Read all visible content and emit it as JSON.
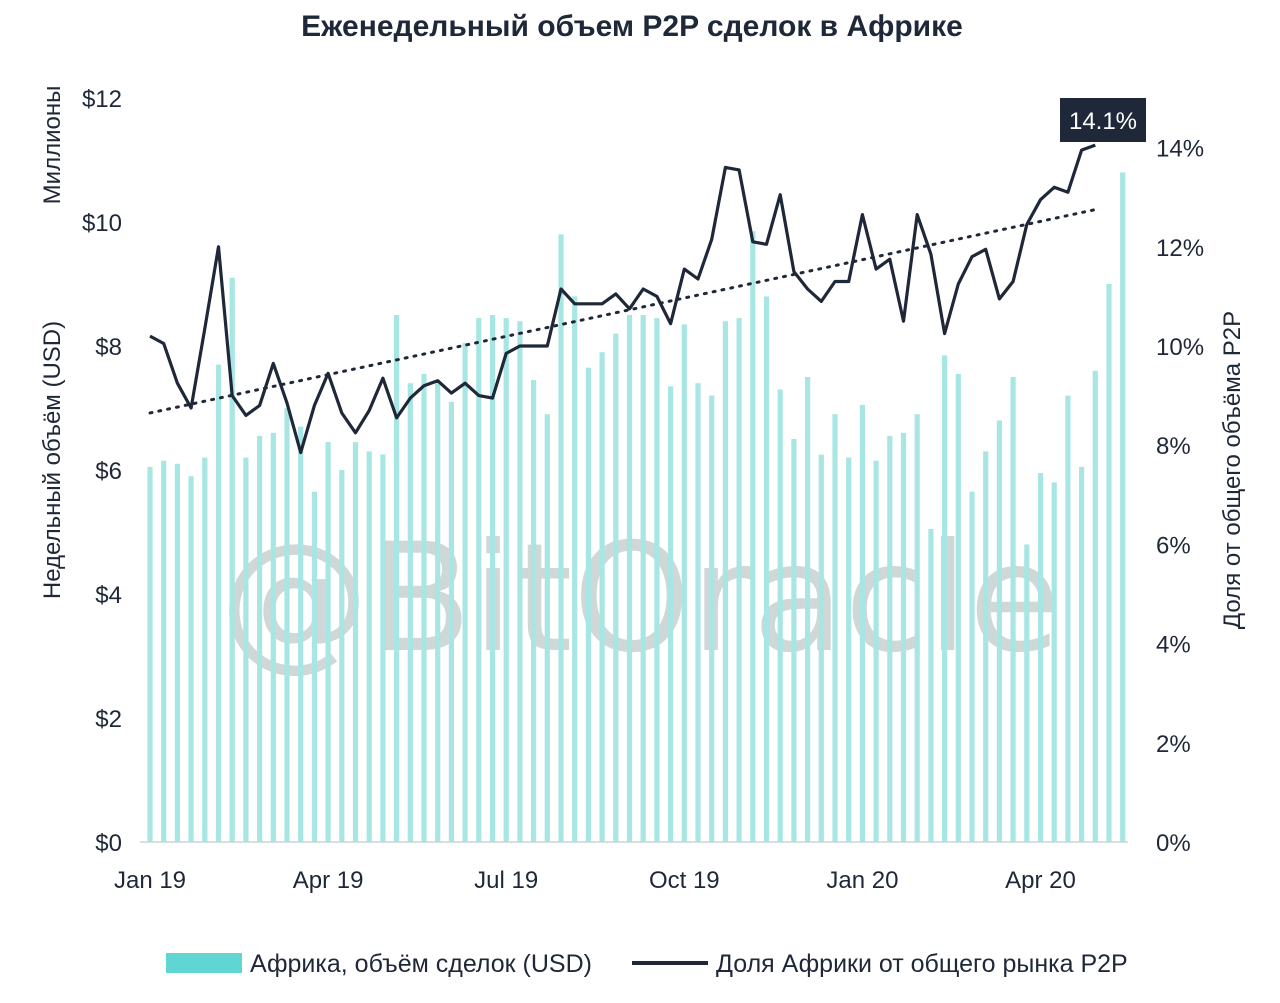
{
  "chart_data": {
    "type": "bar",
    "title": "Еженедельный объем P2P сделок в Африке",
    "ylabel_left": "Недельный объём (USD)",
    "ylabel_left_unit": "Миллионы",
    "ylabel_right": "Доля от общего объёма P2P",
    "xlabel": "",
    "ylim_left": [
      0,
      12
    ],
    "ylim_right": [
      0,
      15
    ],
    "yticks_left": [
      "$0",
      "$2",
      "$4",
      "$6",
      "$8",
      "$10",
      "$12"
    ],
    "yticks_right": [
      "0%",
      "2%",
      "4%",
      "6%",
      "8%",
      "10%",
      "12%",
      "14%"
    ],
    "xticks": [
      "Jan 19",
      "Apr 19",
      "Jul 19",
      "Oct 19",
      "Jan 20",
      "Apr 20"
    ],
    "grid": false,
    "legend_position": "bottom",
    "watermark": "@BitOracle",
    "callout": "14.1%",
    "series": [
      {
        "name": "Африка, объём сделок (USD)",
        "type": "bar",
        "axis": "left",
        "color": "#a8e6e3",
        "values": [
          6.05,
          6.15,
          6.1,
          5.9,
          6.2,
          7.7,
          9.1,
          6.2,
          6.55,
          6.6,
          7.0,
          6.7,
          5.65,
          6.45,
          6.0,
          6.45,
          6.3,
          6.25,
          8.5,
          7.4,
          7.55,
          7.4,
          7.1,
          8.05,
          8.45,
          8.5,
          8.45,
          8.4,
          7.45,
          6.9,
          9.8,
          8.8,
          7.65,
          7.9,
          8.2,
          8.5,
          8.5,
          8.45,
          7.35,
          8.35,
          7.4,
          7.2,
          8.4,
          8.45,
          9.85,
          8.8,
          7.3,
          6.5,
          7.5,
          6.25,
          6.9,
          6.2,
          7.05,
          6.15,
          6.55,
          6.6,
          6.9,
          5.05,
          7.85,
          7.55,
          5.65,
          6.3,
          6.8,
          7.5,
          4.8,
          5.95,
          5.8,
          7.2,
          6.05,
          7.6,
          9.0,
          10.8
        ],
        "bar_labels_shown": false
      },
      {
        "name": "Доля Африки от общего рынка P2P",
        "type": "line",
        "axis": "right",
        "color": "#1f2838",
        "values": [
          10.2,
          10.05,
          9.25,
          8.75,
          10.35,
          12.0,
          9.0,
          8.6,
          8.8,
          9.65,
          8.85,
          7.85,
          8.8,
          9.45,
          8.65,
          8.25,
          8.7,
          9.35,
          8.55,
          8.95,
          9.2,
          9.3,
          9.05,
          9.25,
          9.0,
          8.95,
          9.85,
          10.0,
          10.0,
          10.0,
          11.15,
          10.85,
          10.85,
          10.85,
          11.05,
          10.75,
          11.15,
          11.0,
          10.45,
          11.55,
          11.35,
          12.15,
          13.6,
          13.55,
          12.1,
          12.05,
          13.05,
          11.5,
          11.15,
          10.9,
          11.3,
          11.3,
          12.65,
          11.55,
          11.75,
          10.5,
          12.65,
          11.85,
          10.25,
          11.25,
          11.8,
          11.95,
          10.95,
          11.3,
          12.45,
          12.95,
          13.2,
          13.1,
          13.95,
          14.05
        ],
        "end_label": "14.1%"
      },
      {
        "name": "trend",
        "type": "trendline",
        "axis": "right",
        "style": "dotted",
        "start": 8.65,
        "end": 12.75
      }
    ]
  },
  "legend": [
    {
      "label": "Африка, объём сделок (USD)",
      "swatch": "bar",
      "color": "#5fd6d2"
    },
    {
      "label": "Доля Африки от общего рынка P2P",
      "swatch": "line",
      "color": "#1f2838"
    }
  ]
}
